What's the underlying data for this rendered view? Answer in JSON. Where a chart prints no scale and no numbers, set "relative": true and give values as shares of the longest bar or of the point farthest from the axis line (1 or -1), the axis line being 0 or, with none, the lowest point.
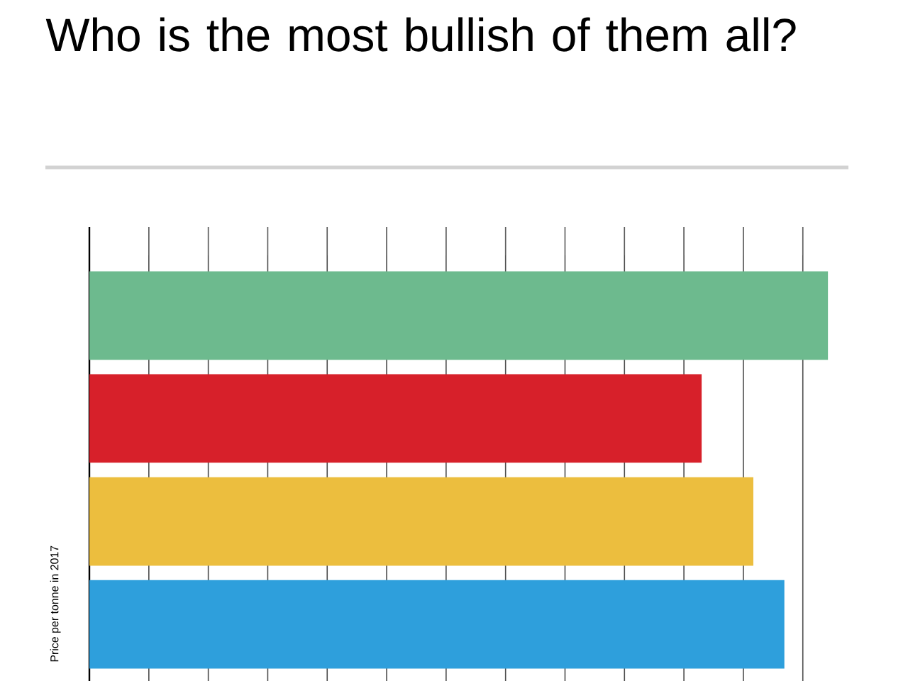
{
  "chart_data": {
    "type": "bar",
    "orientation": "horizontal",
    "relative": true,
    "title": "Who is the most bullish of them all?",
    "ylabel": "Price per tonne in 2017",
    "categories": [
      null,
      null,
      null,
      null
    ],
    "values": [
      1,
      0.829,
      0.899,
      0.941
    ],
    "colors": [
      "#6dba8e",
      "#d7202a",
      "#ecbe3e",
      "#2e9fdc"
    ],
    "grid": "x"
  }
}
